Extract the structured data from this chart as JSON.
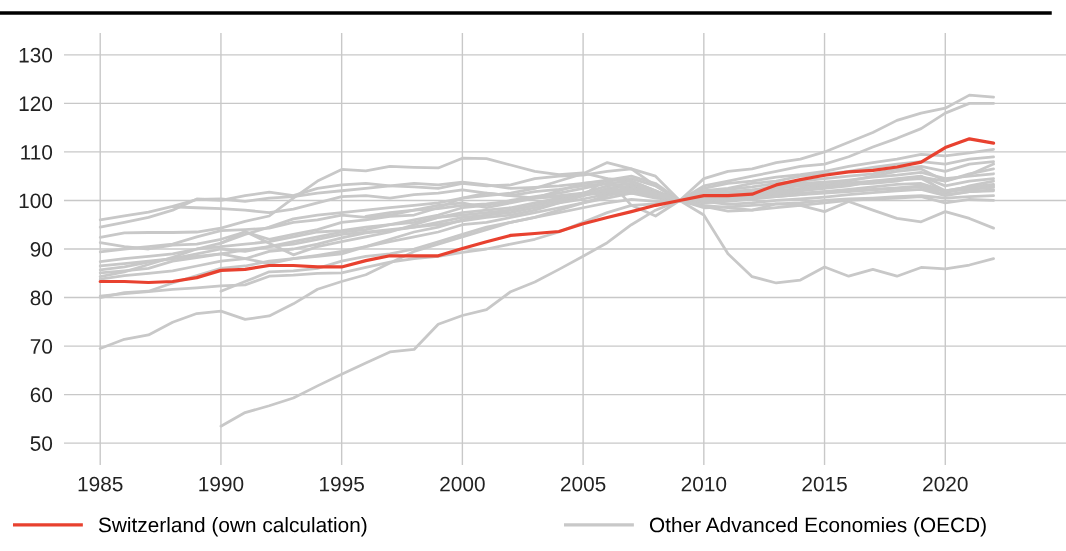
{
  "chart_data": {
    "type": "line",
    "x": [
      1985,
      1986,
      1987,
      1988,
      1989,
      1990,
      1991,
      1992,
      1993,
      1994,
      1995,
      1996,
      1997,
      1998,
      1999,
      2000,
      2001,
      2002,
      2003,
      2004,
      2005,
      2006,
      2007,
      2008,
      2009,
      2010,
      2011,
      2012,
      2013,
      2014,
      2015,
      2016,
      2017,
      2018,
      2019,
      2020,
      2021,
      2022
    ],
    "xlim": [
      1983.5,
      2025
    ],
    "ylim": [
      45.5,
      134.5
    ],
    "xticks": [
      1985,
      1990,
      1995,
      2000,
      2005,
      2010,
      2015,
      2020
    ],
    "yticks": [
      50,
      60,
      70,
      80,
      90,
      100,
      110,
      120,
      130
    ],
    "grid": true,
    "legend": "bottom",
    "series": [
      {
        "name": "Other Advanced Economies (OECD)",
        "color": "#c8c8c8",
        "values": [
          96,
          96.8,
          97.6,
          98.8,
          100.2,
          100.3,
          99.8,
          100.5,
          100.8,
          101.5,
          102,
          102.5,
          103,
          103.5,
          103.2,
          103.8,
          103.2,
          102.5,
          102.7,
          103,
          103.5,
          104,
          104.5,
          103,
          100,
          104.5,
          106,
          106.5,
          107.8,
          108.5,
          110,
          112,
          114,
          116.5,
          118,
          119,
          121.7,
          121.3
        ]
      },
      {
        "color": "#c8c8c8",
        "values": [
          94.5,
          95.5,
          96.5,
          98,
          100.3,
          100,
          101,
          101.7,
          101,
          102.5,
          103.2,
          103.5,
          103,
          102.8,
          102.5,
          103.5,
          103,
          103.2,
          104.5,
          105,
          105.2,
          106,
          106.5,
          105,
          100,
          103,
          104,
          105,
          106,
          107,
          107.5,
          109,
          111,
          112.8,
          114.8,
          118,
          120,
          120
        ]
      },
      {
        "color": "#c8c8c8",
        "values": [
          92.4,
          93.3,
          93.4,
          93.4,
          93.5,
          94.3,
          95.7,
          96.8,
          100.5,
          104,
          106.4,
          106.1,
          107,
          106.8,
          106.7,
          108.7,
          108.6,
          107.3,
          106,
          105.3,
          105.7,
          104.5,
          104,
          102,
          100,
          102.5,
          103.5,
          104,
          104.8,
          105.3,
          106,
          107,
          107.8,
          108.5,
          109.5,
          109.2,
          109.8,
          110.5
        ]
      },
      {
        "color": "#c8c8c8",
        "values": [
          91.3,
          90.5,
          90,
          90.8,
          91,
          92,
          93.5,
          92,
          93,
          94,
          95.5,
          96,
          96.7,
          97,
          98.5,
          100.5,
          101,
          101.5,
          102.5,
          104,
          105.5,
          107.8,
          106.5,
          103,
          100,
          102,
          102.5,
          103.5,
          104,
          105,
          105.5,
          106,
          106.8,
          107.5,
          108,
          107.5,
          108.5,
          109
        ]
      },
      {
        "color": "#c8c8c8",
        "values": [
          89.4,
          90,
          90.5,
          91,
          92.5,
          93.8,
          94,
          94.3,
          95.5,
          96,
          97,
          96.5,
          97,
          98,
          99,
          99.5,
          98.5,
          99.5,
          100.5,
          102,
          103.5,
          104.2,
          105,
          103.5,
          100,
          101.5,
          101,
          102,
          103,
          103.5,
          103.8,
          104,
          105,
          106,
          106.5,
          104,
          105.5,
          106.5
        ]
      },
      {
        "color": "#c8c8c8",
        "values": [
          87.4,
          88,
          88.5,
          89,
          90,
          90.5,
          91,
          91.5,
          92.5,
          93.5,
          93.8,
          94.5,
          95,
          95.5,
          96.5,
          97.5,
          98,
          98.5,
          99.5,
          100.5,
          101.5,
          103,
          103.5,
          101.5,
          100,
          100.5,
          101,
          101.5,
          102,
          102.5,
          103,
          103.3,
          103.5,
          104,
          105,
          101.5,
          103,
          104
        ]
      },
      {
        "color": "#c8c8c8",
        "values": [
          85.7,
          86.3,
          87.3,
          88,
          89,
          90,
          89.5,
          90.5,
          91.5,
          92.5,
          93.5,
          94,
          95,
          96,
          97,
          98.5,
          99,
          100,
          100.8,
          101.5,
          102.5,
          103.5,
          104,
          102,
          100,
          99.5,
          99.8,
          100.3,
          100.8,
          101.2,
          101.8,
          102.3,
          102.8,
          103.3,
          103.5,
          102,
          102.8,
          103.3
        ]
      },
      {
        "color": "#c8c8c8",
        "values": [
          85.1,
          85.5,
          86,
          87.5,
          88.2,
          89,
          88,
          87,
          88,
          88.7,
          89.5,
          90.5,
          92,
          93.5,
          94.5,
          96,
          97,
          98,
          99,
          100,
          101,
          102.5,
          103,
          101.8,
          100,
          99.8,
          99.2,
          99.5,
          100,
          100.3,
          100.7,
          101.2,
          101.6,
          102,
          102.3,
          101,
          101.8,
          102.2
        ]
      },
      {
        "color": "#c8c8c8",
        "values": [
          84.3,
          85.3,
          86.8,
          88.3,
          90,
          91.2,
          93,
          94.5,
          96.2,
          97,
          97.5,
          98,
          98.5,
          99,
          99.5,
          100.5,
          101.5,
          101,
          101.8,
          102.3,
          103,
          103.5,
          102.5,
          101.5,
          100,
          99,
          98.5,
          98,
          98.5,
          99,
          99.5,
          100,
          100.3,
          100.5,
          100.8,
          99.5,
          100.2,
          100
        ]
      },
      {
        "color": "#c8c8c8",
        "values": [
          83.8,
          84.5,
          85,
          85.5,
          86.5,
          87.5,
          88,
          89.5,
          90,
          91,
          92.3,
          93.3,
          93.8,
          94.5,
          95.5,
          96.5,
          97,
          97.5,
          98.5,
          99.5,
          100.3,
          101.3,
          101.5,
          101,
          100,
          101,
          101.5,
          102,
          102.5,
          103,
          103.2,
          103.6,
          104,
          104.2,
          104.5,
          102,
          102.8,
          103
        ]
      },
      {
        "color": "#c8c8c8",
        "values": [
          80.3,
          80.8,
          81.2,
          81.7,
          82,
          82.4,
          82.6,
          84.4,
          84.6,
          85,
          85.1,
          86.2,
          87.3,
          88,
          88.5,
          89.3,
          90,
          91,
          92,
          93.5,
          95.5,
          97.5,
          99,
          99.3,
          100,
          101.5,
          102.3,
          102.8,
          103.5,
          104,
          104.5,
          105,
          105.5,
          106.5,
          107,
          106,
          107.5,
          108
        ]
      },
      {
        "color": "#c8c8c8",
        "values": [
          80,
          81,
          81.3,
          83,
          84.5,
          86,
          86.5,
          87.5,
          88,
          88.5,
          89,
          90.5,
          91.5,
          92.5,
          93.5,
          95,
          95.5,
          96.5,
          97.5,
          98.5,
          99.5,
          100.5,
          101.5,
          100.5,
          100,
          101.2,
          101.8,
          102.2,
          102.8,
          103.3,
          103.7,
          104.2,
          104.8,
          105.2,
          105.8,
          104.5,
          105,
          105.5
        ]
      },
      {
        "color": "#c8c8c8",
        "values": [
          86.5,
          87,
          87.5,
          88,
          88.5,
          89,
          89.8,
          90.5,
          91,
          92,
          93,
          93.5,
          94,
          94.5,
          95,
          95.8,
          96.5,
          97,
          98,
          99.5,
          101,
          104.5,
          99,
          96.8,
          100,
          98.5,
          98.7,
          99,
          99.3,
          99.5,
          100,
          100.3,
          100.5,
          100.8,
          101,
          100.5,
          100.8,
          101
        ]
      },
      {
        "color": "#c8c8c8",
        "values": [
          null,
          null,
          null,
          null,
          null,
          81.3,
          83.3,
          85.3,
          85.5,
          86,
          87.5,
          88.5,
          89,
          90,
          91.5,
          93,
          94.5,
          95.5,
          96.5,
          97.5,
          98.5,
          99.5,
          100.2,
          99.8,
          100,
          100.8,
          101.2,
          101,
          101.8,
          102.3,
          102.8,
          103.2,
          103.8,
          104.3,
          104.8,
          104,
          105.3,
          107.5
        ]
      },
      {
        "color": "#c8c8c8",
        "values": [
          null,
          null,
          null,
          null,
          null,
          91.2,
          93.6,
          91.2,
          88.8,
          90.5,
          91.5,
          92.5,
          93.5,
          95,
          96.5,
          97,
          97.5,
          98,
          99,
          100,
          101,
          102,
          102.5,
          101.5,
          100,
          100.2,
          100.5,
          100.8,
          101.2,
          101.5,
          101.8,
          102,
          102.3,
          102.6,
          103,
          101.8,
          102.3,
          102.7
        ]
      },
      {
        "color": "#c8c8c8",
        "values": [
          null,
          null,
          null,
          98.7,
          98.5,
          98.3,
          98,
          97.5,
          98.2,
          99.5,
          100.8,
          101,
          100.5,
          101.2,
          101.5,
          102.2,
          101.5,
          101,
          100.5,
          100.8,
          101.2,
          101.5,
          101.8,
          101,
          100,
          100.3,
          100.5,
          101,
          101.5,
          102,
          102.5,
          103,
          104,
          104.5,
          105,
          103,
          104,
          104.5
        ]
      },
      {
        "color": "#c8c8c8",
        "values": [
          null,
          null,
          null,
          null,
          null,
          null,
          null,
          null,
          null,
          null,
          null,
          96.7,
          97.5,
          98,
          98.3,
          99,
          99.3,
          99.8,
          100.5,
          101,
          101.5,
          102,
          102,
          101,
          100,
          100.5,
          100.3,
          100.5,
          100.8,
          101.2,
          101.5,
          101.8,
          102.2,
          102.5,
          102.8,
          101.2,
          101.8,
          102
        ]
      },
      {
        "color": "#c8c8c8",
        "values": [
          69.5,
          71.4,
          72.3,
          74.9,
          76.7,
          77.2,
          75.5,
          76.2,
          78.7,
          81.7,
          83.3,
          84.7,
          87.1,
          89.5,
          91,
          92.5,
          94,
          95.5,
          96.5,
          98,
          99.5,
          101,
          102,
          101,
          100,
          98.8,
          97.8,
          98,
          99.3,
          99,
          97.7,
          99.8,
          98,
          96.3,
          95.6,
          97.7,
          96.3,
          94.3
        ]
      },
      {
        "color": "#c8c8c8",
        "values": [
          null,
          null,
          null,
          null,
          null,
          53.5,
          56.3,
          57.7,
          59.3,
          61.8,
          64.2,
          66.5,
          68.8,
          69.3,
          74.5,
          76.3,
          77.5,
          81.2,
          83.2,
          85.8,
          88.5,
          91.3,
          95,
          98,
          100,
          97,
          89,
          84.3,
          83,
          83.6,
          86.3,
          84.4,
          85.8,
          84.4,
          86.2,
          85.9,
          86.7,
          88
        ]
      },
      {
        "name": "Switzerland (own calculation)",
        "color": "#e8412f",
        "values": [
          83.3,
          83.3,
          83.1,
          83.3,
          84.1,
          85.6,
          85.8,
          86.6,
          86.6,
          86.3,
          86.3,
          87.6,
          88.6,
          88.6,
          88.6,
          90.1,
          91.5,
          92.8,
          93.2,
          93.6,
          95.2,
          96.5,
          97.7,
          99,
          100,
          101,
          101,
          101.3,
          103.2,
          104.3,
          105.2,
          105.9,
          106.2,
          106.9,
          107.9,
          110.9,
          112.7,
          111.8
        ]
      }
    ]
  }
}
